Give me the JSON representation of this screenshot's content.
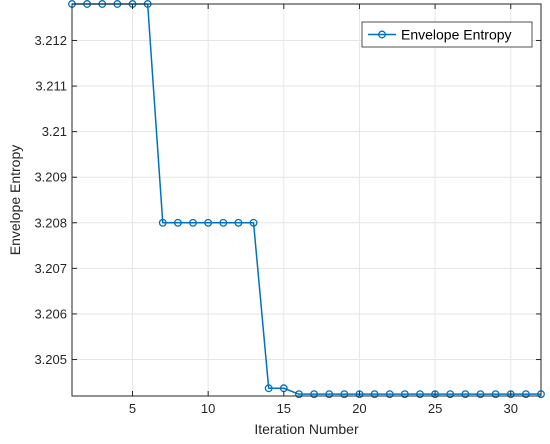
{
  "chart_data": {
    "type": "line",
    "title": "",
    "xlabel": "Iteration Number",
    "ylabel": "Envelope Entropy",
    "xlim": [
      1,
      32
    ],
    "ylim": [
      3.2042,
      3.2128
    ],
    "xticks": [
      5,
      10,
      15,
      20,
      25,
      30
    ],
    "xtick_labels": [
      "5",
      "10",
      "15",
      "20",
      "25",
      "30"
    ],
    "yticks": [
      3.205,
      3.206,
      3.207,
      3.208,
      3.209,
      3.21,
      3.211,
      3.212
    ],
    "ytick_labels": [
      "3.205",
      "3.206",
      "3.207",
      "3.208",
      "3.209",
      "3.21",
      "3.211",
      "3.212"
    ],
    "grid": true,
    "legend_position": "top-right",
    "series": [
      {
        "name": "Envelope Entropy",
        "color": "#0072BD",
        "marker": "circle",
        "x": [
          1,
          2,
          3,
          4,
          5,
          6,
          7,
          8,
          9,
          10,
          11,
          12,
          13,
          14,
          15,
          16,
          17,
          18,
          19,
          20,
          21,
          22,
          23,
          24,
          25,
          26,
          27,
          28,
          29,
          30,
          31,
          32
        ],
        "y": [
          3.2128,
          3.2128,
          3.2128,
          3.2128,
          3.2128,
          3.2128,
          3.208,
          3.208,
          3.208,
          3.208,
          3.208,
          3.208,
          3.208,
          3.20437,
          3.20437,
          3.20424,
          3.20424,
          3.20424,
          3.20424,
          3.20424,
          3.20424,
          3.20424,
          3.20424,
          3.20424,
          3.20424,
          3.20424,
          3.20424,
          3.20424,
          3.20424,
          3.20424,
          3.20424,
          3.20424
        ]
      }
    ]
  }
}
